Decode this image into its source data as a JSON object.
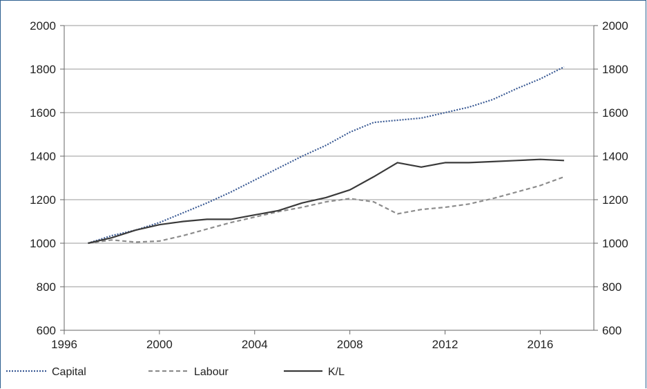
{
  "chart_data": {
    "type": "line",
    "title": "",
    "xlabel": "",
    "ylabel": "",
    "x_ticks": [
      "1996",
      "2000",
      "2004",
      "2008",
      "2012",
      "2016"
    ],
    "y_ticks": [
      "600",
      "800",
      "1000",
      "1200",
      "1400",
      "1600",
      "1800",
      "2000"
    ],
    "xlim": [
      1996,
      2018.25
    ],
    "ylim": [
      600,
      2000
    ],
    "grid": "horizontal",
    "legend_position": "bottom",
    "x": [
      1997,
      1998,
      1999,
      2000,
      2001,
      2002,
      2003,
      2004,
      2005,
      2006,
      2007,
      2008,
      2009,
      2010,
      2011,
      2012,
      2013,
      2014,
      2015,
      2016,
      2017,
      2018
    ],
    "series": [
      {
        "name": "Capital",
        "color": "#3a5a94",
        "style": "dotted",
        "values": [
          1000,
          1035,
          1060,
          1095,
          1140,
          1185,
          1235,
          1290,
          1345,
          1400,
          1450,
          1510,
          1555,
          1565,
          1575,
          1600,
          1625,
          1660,
          1710,
          1755,
          1810,
          null
        ]
      },
      {
        "name": "Labour",
        "color": "#8c8c8c",
        "style": "dashed",
        "values": [
          1000,
          1015,
          1005,
          1010,
          1035,
          1065,
          1095,
          1120,
          1145,
          1165,
          1190,
          1205,
          1190,
          1135,
          1155,
          1165,
          1180,
          1205,
          1235,
          1265,
          1305,
          null
        ]
      },
      {
        "name": "K/L",
        "color": "#3a3a3a",
        "style": "solid",
        "values": [
          1000,
          1025,
          1060,
          1085,
          1100,
          1110,
          1110,
          1130,
          1150,
          1185,
          1210,
          1245,
          1305,
          1370,
          1350,
          1370,
          1370,
          1375,
          1380,
          1385,
          1380,
          null
        ]
      }
    ]
  }
}
